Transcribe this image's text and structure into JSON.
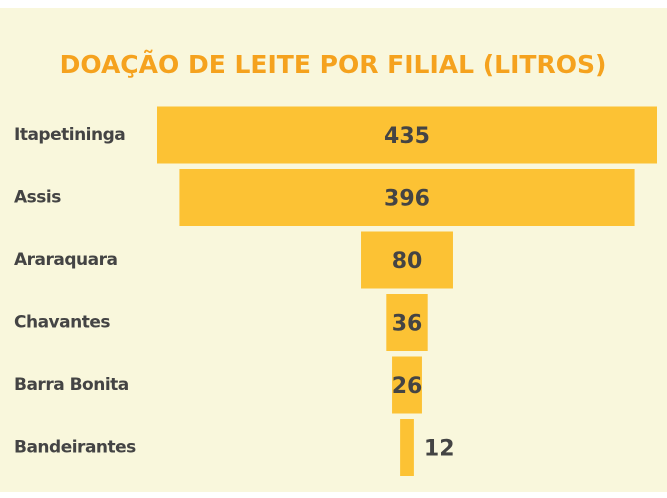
{
  "chart_data": {
    "type": "funnel",
    "title": "DOAÇÃO DE LEITE POR FILIAL (LITROS)",
    "categories": [
      "Itapetininga",
      "Assis",
      "Araraquara",
      "Chavantes",
      "Barra Bonita",
      "Bandeirantes"
    ],
    "values": [
      435,
      396,
      80,
      36,
      26,
      12
    ],
    "color": "#fcc234"
  }
}
